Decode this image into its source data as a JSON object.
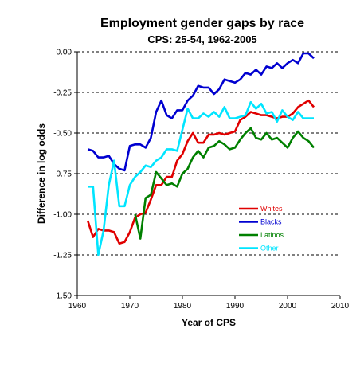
{
  "chart_data": {
    "type": "line",
    "title": "Employment gender gaps by race",
    "subtitle": "CPS: 25-54, 1962-2005",
    "xlabel": "Year of CPS",
    "ylabel": "Difference in log odds",
    "xlim": [
      1960,
      2010
    ],
    "ylim": [
      -1.5,
      0.0
    ],
    "xticks": [
      "1960",
      "1970",
      "1980",
      "1990",
      "2000",
      "2010"
    ],
    "yticks": [
      "0.00",
      "-0.25",
      "-0.50",
      "-0.75",
      "-1.00",
      "-1.25",
      "-1.50"
    ],
    "grid": "horizontal dashed",
    "legend_position": "lower-right inside",
    "series": [
      {
        "name": "Whites",
        "color": "#e00000",
        "x": [
          1962,
          1963,
          1964,
          1965,
          1966,
          1967,
          1968,
          1969,
          1970,
          1971,
          1972,
          1973,
          1974,
          1975,
          1976,
          1977,
          1978,
          1979,
          1980,
          1981,
          1982,
          1983,
          1984,
          1985,
          1986,
          1987,
          1988,
          1989,
          1990,
          1991,
          1992,
          1993,
          1994,
          1995,
          1996,
          1997,
          1998,
          1999,
          2000,
          2001,
          2002,
          2003,
          2004,
          2005
        ],
        "y": [
          -1.04,
          -1.14,
          -1.09,
          -1.1,
          -1.1,
          -1.11,
          -1.18,
          -1.17,
          -1.11,
          -1.02,
          -1.0,
          -0.99,
          -0.91,
          -0.82,
          -0.82,
          -0.77,
          -0.77,
          -0.67,
          -0.63,
          -0.55,
          -0.5,
          -0.56,
          -0.56,
          -0.51,
          -0.51,
          -0.5,
          -0.51,
          -0.5,
          -0.49,
          -0.42,
          -0.4,
          -0.37,
          -0.38,
          -0.39,
          -0.39,
          -0.4,
          -0.41,
          -0.4,
          -0.4,
          -0.38,
          -0.34,
          -0.32,
          -0.3,
          -0.34
        ]
      },
      {
        "name": "Blacks",
        "color": "#0000d0",
        "x": [
          1962,
          1963,
          1964,
          1965,
          1966,
          1967,
          1968,
          1969,
          1970,
          1971,
          1972,
          1973,
          1974,
          1975,
          1976,
          1977,
          1978,
          1979,
          1980,
          1981,
          1982,
          1983,
          1984,
          1985,
          1986,
          1987,
          1988,
          1989,
          1990,
          1991,
          1992,
          1993,
          1994,
          1995,
          1996,
          1997,
          1998,
          1999,
          2000,
          2001,
          2002,
          2003,
          2004,
          2005
        ],
        "y": [
          -0.6,
          -0.61,
          -0.65,
          -0.65,
          -0.64,
          -0.69,
          -0.72,
          -0.73,
          -0.58,
          -0.57,
          -0.57,
          -0.59,
          -0.53,
          -0.37,
          -0.3,
          -0.39,
          -0.41,
          -0.36,
          -0.36,
          -0.3,
          -0.27,
          -0.21,
          -0.22,
          -0.22,
          -0.26,
          -0.23,
          -0.17,
          -0.18,
          -0.19,
          -0.17,
          -0.13,
          -0.14,
          -0.11,
          -0.14,
          -0.09,
          -0.1,
          -0.07,
          -0.1,
          -0.07,
          -0.05,
          -0.07,
          -0.01,
          -0.01,
          -0.04
        ]
      },
      {
        "name": "Latinos",
        "color": "#008000",
        "x": [
          1971,
          1972,
          1973,
          1974,
          1975,
          1976,
          1977,
          1978,
          1979,
          1980,
          1981,
          1982,
          1983,
          1984,
          1985,
          1986,
          1987,
          1988,
          1989,
          1990,
          1991,
          1992,
          1993,
          1994,
          1995,
          1996,
          1997,
          1998,
          1999,
          2000,
          2001,
          2002,
          2003,
          2004,
          2005
        ],
        "y": [
          -1.0,
          -1.15,
          -0.9,
          -0.88,
          -0.74,
          -0.78,
          -0.82,
          -0.81,
          -0.83,
          -0.75,
          -0.72,
          -0.65,
          -0.61,
          -0.65,
          -0.59,
          -0.58,
          -0.55,
          -0.57,
          -0.6,
          -0.59,
          -0.54,
          -0.5,
          -0.47,
          -0.53,
          -0.54,
          -0.5,
          -0.54,
          -0.53,
          -0.56,
          -0.59,
          -0.53,
          -0.49,
          -0.53,
          -0.55,
          -0.59
        ]
      },
      {
        "name": "Other",
        "color": "#00e5ff",
        "x": [
          1962,
          1963,
          1964,
          1965,
          1966,
          1967,
          1968,
          1969,
          1970,
          1971,
          1972,
          1973,
          1974,
          1975,
          1976,
          1977,
          1978,
          1979,
          1980,
          1981,
          1982,
          1983,
          1984,
          1985,
          1986,
          1987,
          1988,
          1989,
          1990,
          1991,
          1992,
          1993,
          1994,
          1995,
          1996,
          1997,
          1998,
          1999,
          2000,
          2001,
          2002,
          2003,
          2004,
          2005
        ],
        "y": [
          -0.83,
          -0.83,
          -1.25,
          -1.1,
          -0.82,
          -0.67,
          -0.95,
          -0.95,
          -0.82,
          -0.77,
          -0.74,
          -0.7,
          -0.71,
          -0.67,
          -0.65,
          -0.6,
          -0.6,
          -0.61,
          -0.48,
          -0.35,
          -0.41,
          -0.41,
          -0.38,
          -0.4,
          -0.37,
          -0.4,
          -0.34,
          -0.41,
          -0.41,
          -0.4,
          -0.39,
          -0.31,
          -0.35,
          -0.32,
          -0.38,
          -0.37,
          -0.43,
          -0.36,
          -0.4,
          -0.42,
          -0.37,
          -0.41,
          -0.41,
          -0.41
        ]
      }
    ]
  }
}
